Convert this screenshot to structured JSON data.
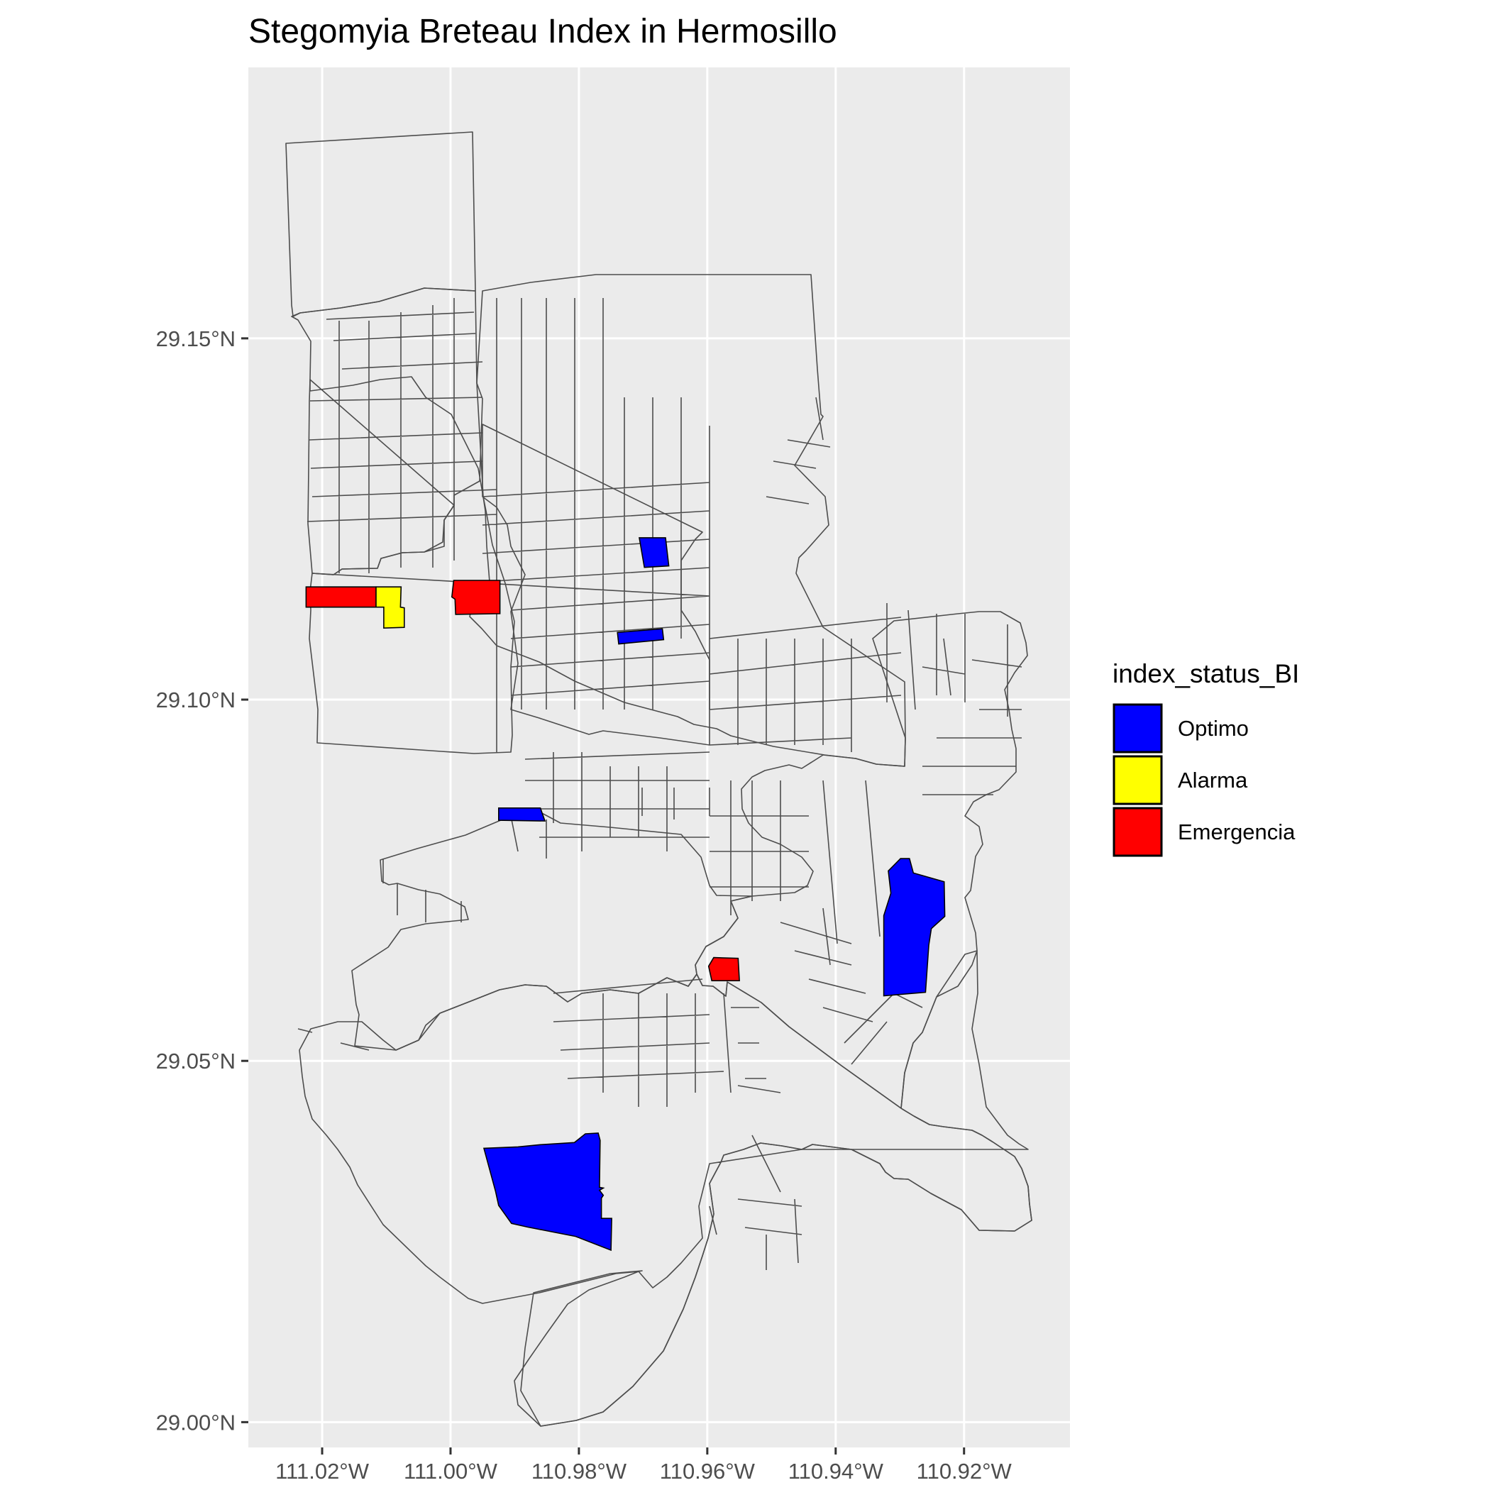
{
  "title": "Stegomyia Breteau Index in Hermosillo",
  "map": {
    "x_axis": {
      "range": [
        -111.0315,
        -110.9035
      ],
      "ticks": [
        "111.02°W",
        "111.00°W",
        "110.98°W",
        "110.96°W",
        "110.94°W",
        "110.92°W"
      ],
      "tick_values": [
        -111.02,
        -111.0,
        -110.98,
        -110.96,
        -110.94,
        -110.92
      ]
    },
    "y_axis": {
      "range": [
        28.9965,
        29.1875
      ],
      "ticks": [
        "29.00°N",
        "29.05°N",
        "29.10°N",
        "29.15°N"
      ],
      "tick_values": [
        29.0,
        29.05,
        29.1,
        29.15
      ]
    },
    "grid": true,
    "panel_color": "#ebebeb",
    "boundary_color": "#4d4d4d",
    "status_colors": {
      "Optimo": "#0000ff",
      "Alarma": "#ffff00",
      "Emergencia": "#ff0000"
    }
  },
  "legend": {
    "title": "index_status_BI",
    "placement": "right",
    "items": [
      {
        "label": "Optimo",
        "color": "#0000ff"
      },
      {
        "label": "Alarma",
        "color": "#ffff00"
      },
      {
        "label": "Emergencia",
        "color": "#ff0000"
      }
    ]
  },
  "chart_data": {
    "type": "choropleth",
    "title": "Stegomyia Breteau Index in Hermosillo",
    "legend_title": "index_status_BI",
    "categories": [
      "Optimo",
      "Alarma",
      "Emergencia"
    ],
    "highlighted_areas": [
      {
        "status": "Emergencia",
        "polygon": [
          [
            -111.0225,
            29.1156
          ],
          [
            -111.0116,
            29.1156
          ],
          [
            -111.0116,
            29.1128
          ],
          [
            -111.0225,
            29.1128
          ]
        ]
      },
      {
        "status": "Alarma",
        "polygon": [
          [
            -111.0116,
            29.1156
          ],
          [
            -111.0077,
            29.1156
          ],
          [
            -111.0078,
            29.1128
          ],
          [
            -111.0072,
            29.1127
          ],
          [
            -111.0072,
            29.11
          ],
          [
            -111.0104,
            29.1099
          ],
          [
            -111.0104,
            29.1128
          ],
          [
            -111.0116,
            29.1128
          ]
        ]
      },
      {
        "status": "Emergencia",
        "polygon": [
          [
            -110.9995,
            29.1165
          ],
          [
            -110.9923,
            29.1165
          ],
          [
            -110.9923,
            29.1119
          ],
          [
            -110.9992,
            29.1118
          ],
          [
            -110.9993,
            29.1139
          ],
          [
            -110.9998,
            29.1142
          ]
        ]
      },
      {
        "status": "Optimo",
        "polygon": [
          [
            -110.9706,
            29.1224
          ],
          [
            -110.9665,
            29.1224
          ],
          [
            -110.966,
            29.1185
          ],
          [
            -110.9698,
            29.1183
          ]
        ]
      },
      {
        "status": "Optimo",
        "polygon": [
          [
            -110.974,
            29.1093
          ],
          [
            -110.967,
            29.1098
          ],
          [
            -110.9668,
            29.1083
          ],
          [
            -110.9738,
            29.1077
          ]
        ]
      },
      {
        "status": "Optimo",
        "polygon": [
          [
            -110.9925,
            29.085
          ],
          [
            -110.986,
            29.085
          ],
          [
            -110.9853,
            29.0832
          ],
          [
            -110.9925,
            29.0833
          ]
        ]
      },
      {
        "status": "Optimo",
        "polygon": [
          [
            -110.9299,
            29.078
          ],
          [
            -110.9285,
            29.078
          ],
          [
            -110.9279,
            29.076
          ],
          [
            -110.9231,
            29.0748
          ],
          [
            -110.923,
            29.07
          ],
          [
            -110.9251,
            29.0683
          ],
          [
            -110.9255,
            29.066
          ],
          [
            -110.926,
            29.0595
          ],
          [
            -110.9325,
            29.059
          ],
          [
            -110.9325,
            29.0701
          ],
          [
            -110.9314,
            29.0732
          ],
          [
            -110.9318,
            29.0763
          ],
          [
            -110.931,
            29.077
          ]
        ]
      },
      {
        "status": "Emergencia",
        "polygon": [
          [
            -110.959,
            29.0643
          ],
          [
            -110.9552,
            29.0642
          ],
          [
            -110.955,
            29.0611
          ],
          [
            -110.9593,
            29.0611
          ],
          [
            -110.9598,
            29.0631
          ]
        ]
      },
      {
        "status": "Optimo",
        "polygon": [
          [
            -110.9895,
            29.0381
          ],
          [
            -110.986,
            29.0384
          ],
          [
            -110.9807,
            29.0387
          ],
          [
            -110.979,
            29.0399
          ],
          [
            -110.977,
            29.04
          ],
          [
            -110.9767,
            29.039
          ],
          [
            -110.9768,
            29.0325
          ],
          [
            -110.9762,
            29.0324
          ],
          [
            -110.9768,
            29.0321
          ],
          [
            -110.9762,
            29.0314
          ],
          [
            -110.9765,
            29.031
          ],
          [
            -110.9765,
            29.0282
          ],
          [
            -110.9749,
            29.0282
          ],
          [
            -110.975,
            29.0238
          ],
          [
            -110.9805,
            29.0257
          ],
          [
            -110.988,
            29.027
          ],
          [
            -110.9905,
            29.0275
          ],
          [
            -110.9925,
            29.03
          ],
          [
            -110.993,
            29.032
          ],
          [
            -110.9948,
            29.0379
          ]
        ]
      }
    ]
  }
}
